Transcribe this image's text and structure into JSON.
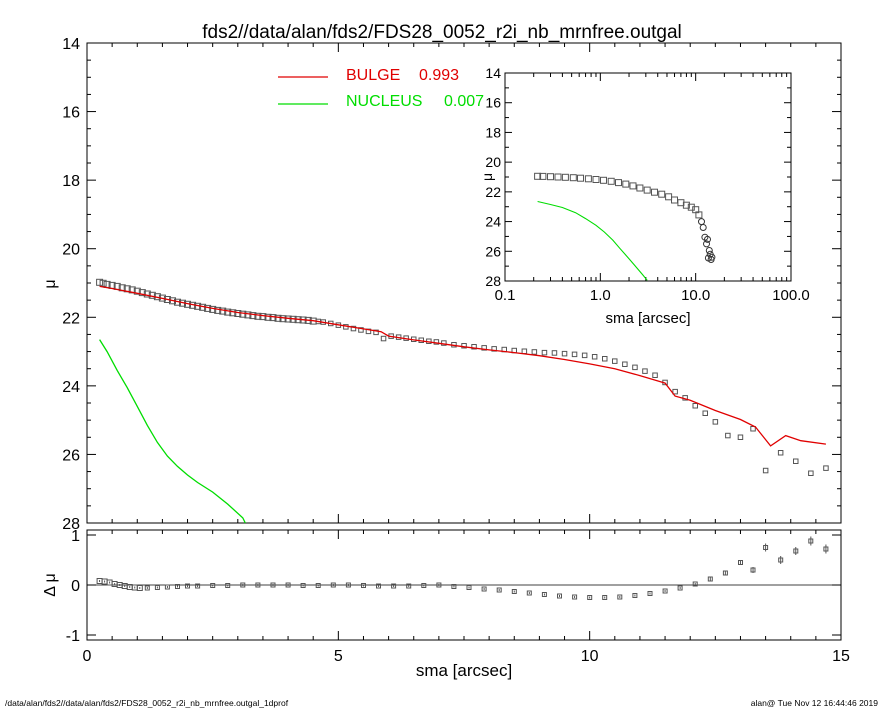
{
  "title": "fds2//data/alan/fds2/FDS28_0052_r2i_nb_mrnfree.outgal",
  "footer": {
    "left": "/data/alan/fds2//data/alan/fds2/FDS28_0052_r2i_nb_mrnfree.outgal_1dprof",
    "right": "alan@  Tue Nov 12 16:44:46 2019"
  },
  "colors": {
    "bulge": "#e00000",
    "nucleus": "#00dd00",
    "data": "#555555",
    "axes": "#000000"
  },
  "legend": [
    {
      "label": "BULGE",
      "value": "0.993",
      "color": "#e00000"
    },
    {
      "label": "NUCLEUS",
      "value": "0.007",
      "color": "#00dd00"
    }
  ],
  "chart_data": [
    {
      "id": "main",
      "type": "scatter",
      "xlabel": "",
      "ylabel": "μ",
      "xlim": [
        0,
        15
      ],
      "ylim": [
        28,
        14
      ],
      "yticks": [
        14,
        16,
        18,
        20,
        22,
        24,
        26,
        28
      ],
      "ytick_labels": [
        "14",
        "16",
        "18",
        "20",
        "22",
        "24",
        "26",
        "28"
      ],
      "data_points": [
        [
          0.25,
          20.98
        ],
        [
          0.32,
          21.01
        ],
        [
          0.4,
          21.04
        ],
        [
          0.5,
          21.07
        ],
        [
          0.6,
          21.1
        ],
        [
          0.7,
          21.14
        ],
        [
          0.8,
          21.17
        ],
        [
          0.9,
          21.2
        ],
        [
          1.0,
          21.24
        ],
        [
          1.1,
          21.28
        ],
        [
          1.2,
          21.32
        ],
        [
          1.3,
          21.36
        ],
        [
          1.4,
          21.4
        ],
        [
          1.5,
          21.44
        ],
        [
          1.6,
          21.48
        ],
        [
          1.7,
          21.52
        ],
        [
          1.8,
          21.56
        ],
        [
          1.9,
          21.59
        ],
        [
          2.0,
          21.62
        ],
        [
          2.1,
          21.65
        ],
        [
          2.2,
          21.68
        ],
        [
          2.3,
          21.71
        ],
        [
          2.4,
          21.74
        ],
        [
          2.5,
          21.77
        ],
        [
          2.6,
          21.8
        ],
        [
          2.7,
          21.82
        ],
        [
          2.8,
          21.85
        ],
        [
          2.9,
          21.87
        ],
        [
          3.0,
          21.89
        ],
        [
          3.1,
          21.91
        ],
        [
          3.2,
          21.93
        ],
        [
          3.3,
          21.95
        ],
        [
          3.4,
          21.97
        ],
        [
          3.5,
          21.98
        ],
        [
          3.6,
          22.0
        ],
        [
          3.7,
          22.01
        ],
        [
          3.8,
          22.03
        ],
        [
          3.9,
          22.04
        ],
        [
          4.0,
          22.05
        ],
        [
          4.1,
          22.06
        ],
        [
          4.2,
          22.07
        ],
        [
          4.3,
          22.08
        ],
        [
          4.4,
          22.09
        ],
        [
          4.5,
          22.11
        ],
        [
          4.6,
          22.12
        ],
        [
          4.7,
          22.14
        ],
        [
          4.85,
          22.18
        ],
        [
          5.0,
          22.23
        ],
        [
          5.15,
          22.28
        ],
        [
          5.3,
          22.33
        ],
        [
          5.45,
          22.37
        ],
        [
          5.6,
          22.41
        ],
        [
          5.75,
          22.44
        ],
        [
          5.9,
          22.62
        ],
        [
          6.05,
          22.55
        ],
        [
          6.2,
          22.58
        ],
        [
          6.35,
          22.61
        ],
        [
          6.5,
          22.64
        ],
        [
          6.65,
          22.67
        ],
        [
          6.8,
          22.7
        ],
        [
          6.95,
          22.72
        ],
        [
          7.1,
          22.75
        ],
        [
          7.3,
          22.8
        ],
        [
          7.5,
          22.83
        ],
        [
          7.7,
          22.86
        ],
        [
          7.9,
          22.89
        ],
        [
          8.1,
          22.92
        ],
        [
          8.3,
          22.94
        ],
        [
          8.5,
          22.97
        ],
        [
          8.7,
          22.99
        ],
        [
          8.9,
          23.01
        ],
        [
          9.1,
          23.03
        ],
        [
          9.3,
          23.04
        ],
        [
          9.5,
          23.06
        ],
        [
          9.7,
          23.08
        ],
        [
          9.9,
          23.11
        ],
        [
          10.1,
          23.15
        ],
        [
          10.3,
          23.21
        ],
        [
          10.5,
          23.28
        ],
        [
          10.7,
          23.37
        ],
        [
          10.9,
          23.46
        ],
        [
          11.1,
          23.57
        ],
        [
          11.3,
          23.69
        ],
        [
          11.5,
          23.9
        ],
        [
          11.7,
          24.17
        ],
        [
          11.9,
          24.35
        ],
        [
          12.1,
          24.58
        ],
        [
          12.3,
          24.8
        ],
        [
          12.5,
          25.05
        ],
        [
          12.75,
          25.45
        ],
        [
          13.0,
          25.5
        ],
        [
          13.25,
          25.25
        ],
        [
          13.5,
          26.47
        ],
        [
          13.8,
          25.95
        ],
        [
          14.1,
          26.2
        ],
        [
          14.4,
          26.55
        ],
        [
          14.7,
          26.4
        ]
      ],
      "series": [
        {
          "name": "BULGE",
          "color": "#e00000",
          "points": [
            [
              0.25,
              21.1
            ],
            [
              0.5,
              21.16
            ],
            [
              1.0,
              21.3
            ],
            [
              1.5,
              21.45
            ],
            [
              2.0,
              21.6
            ],
            [
              2.5,
              21.74
            ],
            [
              3.0,
              21.86
            ],
            [
              3.5,
              21.95
            ],
            [
              4.0,
              22.03
            ],
            [
              4.5,
              22.1
            ],
            [
              5.0,
              22.22
            ],
            [
              5.5,
              22.34
            ],
            [
              5.85,
              22.42
            ],
            [
              6.0,
              22.55
            ],
            [
              6.5,
              22.66
            ],
            [
              7.0,
              22.76
            ],
            [
              7.5,
              22.86
            ],
            [
              8.0,
              22.95
            ],
            [
              8.5,
              23.03
            ],
            [
              9.0,
              23.12
            ],
            [
              9.5,
              23.23
            ],
            [
              10.0,
              23.36
            ],
            [
              10.5,
              23.5
            ],
            [
              11.0,
              23.7
            ],
            [
              11.5,
              23.92
            ],
            [
              11.7,
              24.3
            ],
            [
              12.0,
              24.42
            ],
            [
              12.5,
              24.72
            ],
            [
              13.0,
              24.98
            ],
            [
              13.3,
              25.2
            ],
            [
              13.6,
              25.75
            ],
            [
              13.9,
              25.45
            ],
            [
              14.2,
              25.6
            ],
            [
              14.7,
              25.7
            ]
          ]
        },
        {
          "name": "NUCLEUS",
          "color": "#00dd00",
          "points": [
            [
              0.25,
              22.65
            ],
            [
              0.4,
              23.0
            ],
            [
              0.6,
              23.55
            ],
            [
              0.8,
              24.05
            ],
            [
              1.0,
              24.6
            ],
            [
              1.2,
              25.15
            ],
            [
              1.4,
              25.65
            ],
            [
              1.6,
              26.05
            ],
            [
              1.8,
              26.35
            ],
            [
              2.0,
              26.6
            ],
            [
              2.2,
              26.82
            ],
            [
              2.5,
              27.1
            ],
            [
              2.8,
              27.45
            ],
            [
              3.1,
              27.85
            ],
            [
              3.15,
              28.0
            ]
          ]
        }
      ]
    },
    {
      "id": "residual",
      "type": "scatter",
      "xlabel": "sma [arcsec]",
      "ylabel": "Δ μ",
      "xlim": [
        0,
        15
      ],
      "ylim": [
        -1.1,
        1.1
      ],
      "xticks": [
        0,
        5,
        10,
        15
      ],
      "xtick_labels": [
        "0",
        "5",
        "10",
        "15"
      ],
      "yticks": [
        1,
        0,
        -1
      ],
      "ytick_labels": [
        "1",
        "0",
        "-1"
      ],
      "reference_line": 0,
      "points": [
        [
          0.25,
          0.08,
          0.02
        ],
        [
          0.35,
          0.07,
          0.02
        ],
        [
          0.45,
          0.05,
          0.02
        ],
        [
          0.55,
          0.02,
          0.02
        ],
        [
          0.65,
          0.0,
          0.02
        ],
        [
          0.75,
          -0.02,
          0.02
        ],
        [
          0.85,
          -0.04,
          0.02
        ],
        [
          0.95,
          -0.05,
          0.02
        ],
        [
          1.05,
          -0.06,
          0.02
        ],
        [
          1.2,
          -0.06,
          0.02
        ],
        [
          1.4,
          -0.05,
          0.02
        ],
        [
          1.6,
          -0.04,
          0.02
        ],
        [
          1.8,
          -0.03,
          0.02
        ],
        [
          2.0,
          -0.02,
          0.02
        ],
        [
          2.2,
          -0.02,
          0.02
        ],
        [
          2.5,
          -0.01,
          0.02
        ],
        [
          2.8,
          -0.01,
          0.02
        ],
        [
          3.1,
          0.0,
          0.02
        ],
        [
          3.4,
          0.0,
          0.02
        ],
        [
          3.7,
          0.0,
          0.02
        ],
        [
          4.0,
          0.0,
          0.02
        ],
        [
          4.3,
          -0.01,
          0.02
        ],
        [
          4.6,
          -0.01,
          0.02
        ],
        [
          4.9,
          0.0,
          0.02
        ],
        [
          5.2,
          0.0,
          0.02
        ],
        [
          5.5,
          -0.01,
          0.02
        ],
        [
          5.8,
          -0.02,
          0.02
        ],
        [
          6.1,
          -0.02,
          0.02
        ],
        [
          6.4,
          -0.02,
          0.02
        ],
        [
          6.7,
          -0.01,
          0.02
        ],
        [
          7.0,
          0.0,
          0.02
        ],
        [
          7.3,
          -0.03,
          0.02
        ],
        [
          7.6,
          -0.05,
          0.02
        ],
        [
          7.9,
          -0.08,
          0.02
        ],
        [
          8.2,
          -0.1,
          0.02
        ],
        [
          8.5,
          -0.13,
          0.02
        ],
        [
          8.8,
          -0.16,
          0.02
        ],
        [
          9.1,
          -0.19,
          0.02
        ],
        [
          9.4,
          -0.22,
          0.02
        ],
        [
          9.7,
          -0.24,
          0.02
        ],
        [
          10.0,
          -0.25,
          0.02
        ],
        [
          10.3,
          -0.25,
          0.02
        ],
        [
          10.6,
          -0.24,
          0.02
        ],
        [
          10.9,
          -0.21,
          0.02
        ],
        [
          11.2,
          -0.17,
          0.02
        ],
        [
          11.5,
          -0.12,
          0.02
        ],
        [
          11.8,
          -0.06,
          0.02
        ],
        [
          12.1,
          0.02,
          0.02
        ],
        [
          12.4,
          0.12,
          0.03
        ],
        [
          12.7,
          0.24,
          0.04
        ],
        [
          13.0,
          0.45,
          0.05
        ],
        [
          13.25,
          0.3,
          0.06
        ],
        [
          13.5,
          0.75,
          0.08
        ],
        [
          13.8,
          0.5,
          0.08
        ],
        [
          14.1,
          0.68,
          0.08
        ],
        [
          14.4,
          0.88,
          0.09
        ],
        [
          14.7,
          0.72,
          0.09
        ]
      ]
    },
    {
      "id": "inset",
      "type": "scatter",
      "xscale": "log",
      "xlabel": "sma [arcsec]",
      "ylabel": "μ",
      "xlim": [
        0.1,
        100
      ],
      "ylim": [
        28,
        14
      ],
      "xticks": [
        0.1,
        1,
        10,
        100
      ],
      "xtick_labels": [
        "0.1",
        "1.0",
        "10.0",
        "100.0"
      ],
      "yticks": [
        14,
        16,
        18,
        20,
        22,
        24,
        26,
        28
      ],
      "ytick_labels": [
        "14",
        "16",
        "18",
        "20",
        "22",
        "24",
        "26",
        "28"
      ],
      "data_points": [
        [
          0.22,
          20.95
        ],
        [
          0.25,
          20.96
        ],
        [
          0.3,
          20.98
        ],
        [
          0.36,
          21.0
        ],
        [
          0.43,
          21.02
        ],
        [
          0.52,
          21.05
        ],
        [
          0.62,
          21.08
        ],
        [
          0.75,
          21.12
        ],
        [
          0.9,
          21.17
        ],
        [
          1.08,
          21.22
        ],
        [
          1.3,
          21.29
        ],
        [
          1.55,
          21.38
        ],
        [
          1.85,
          21.48
        ],
        [
          2.2,
          21.6
        ],
        [
          2.6,
          21.74
        ],
        [
          3.1,
          21.88
        ],
        [
          3.7,
          22.02
        ],
        [
          4.4,
          22.16
        ],
        [
          5.2,
          22.33
        ],
        [
          6.0,
          22.55
        ],
        [
          7.0,
          22.73
        ],
        [
          8.0,
          22.9
        ],
        [
          9.0,
          23.03
        ],
        [
          10.0,
          23.2
        ],
        [
          10.8,
          23.55
        ],
        [
          11.5,
          24.0
        ],
        [
          12.0,
          24.4
        ],
        [
          12.5,
          25.05
        ],
        [
          13.0,
          25.5
        ],
        [
          13.3,
          25.2
        ],
        [
          13.6,
          26.45
        ],
        [
          13.9,
          25.95
        ],
        [
          14.2,
          26.2
        ],
        [
          14.5,
          26.55
        ],
        [
          14.8,
          26.4
        ]
      ],
      "series": [
        {
          "name": "NUCLEUS",
          "color": "#00dd00",
          "points": [
            [
              0.22,
              22.65
            ],
            [
              0.3,
              22.85
            ],
            [
              0.4,
              23.05
            ],
            [
              0.55,
              23.4
            ],
            [
              0.7,
              23.8
            ],
            [
              0.9,
              24.25
            ],
            [
              1.1,
              24.7
            ],
            [
              1.35,
              25.25
            ],
            [
              1.6,
              25.8
            ],
            [
              2.0,
              26.5
            ],
            [
              2.4,
              27.1
            ],
            [
              2.8,
              27.6
            ],
            [
              3.1,
              27.95
            ]
          ]
        }
      ]
    }
  ]
}
